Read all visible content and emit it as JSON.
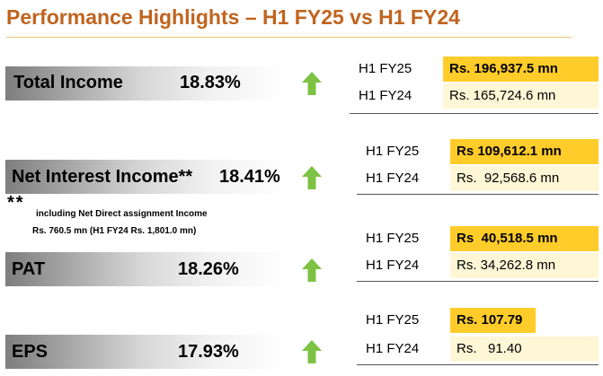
{
  "title": "Performance Highlights – H1 FY25 vs H1 FY24",
  "accent_color": "#c0641f",
  "highlight_color": "#ffcc29",
  "arrow_color": "#7dc243",
  "metrics": [
    {
      "label": "Total Income",
      "growth": "18.83%",
      "trend_icon": "up-arrow",
      "current": {
        "period": "H1 FY25",
        "value": "Rs. 196,937.5 mn"
      },
      "previous": {
        "period": "H1 FY24",
        "value": "Rs. 165,724.6 mn"
      }
    },
    {
      "label": "Net Interest Income**",
      "growth": "18.41%",
      "trend_icon": "up-arrow",
      "current": {
        "period": "H1 FY25",
        "value": "Rs 109,612.1 mn"
      },
      "previous": {
        "period": "H1 FY24",
        "value": "Rs.  92,568.6 mn"
      }
    },
    {
      "label": "PAT",
      "growth": "18.26%",
      "trend_icon": "up-arrow",
      "current": {
        "period": "H1 FY25",
        "value": "Rs  40,518.5 mn"
      },
      "previous": {
        "period": "H1 FY24",
        "value": "Rs. 34,262.8 mn"
      }
    },
    {
      "label": "EPS",
      "growth": "17.93%",
      "trend_icon": "up-arrow",
      "current": {
        "period": "H1 FY25",
        "value": "Rs. 107.79"
      },
      "previous": {
        "period": "H1 FY24",
        "value": "Rs.   91.40"
      }
    }
  ],
  "footnote": {
    "marker": "**",
    "line1": "including Net Direct assignment Income",
    "line2": "Rs. 760.5 mn (H1 FY24 Rs. 1,801.0 mn)"
  }
}
